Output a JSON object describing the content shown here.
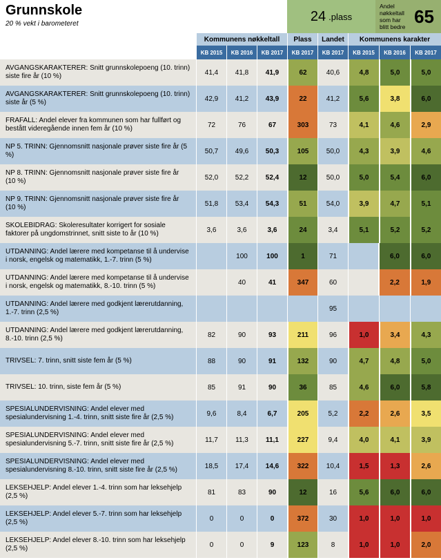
{
  "header": {
    "title": "Grunnskole",
    "subtitle": "20 % vekt i barometeret",
    "plass_num": "24",
    "plass_label": ".plass",
    "bedre_text": "Andel nøkkeltall som har blitt bedre",
    "bedre_num": "65"
  },
  "group_headers": {
    "nokkeltall": "Kommunens nøkkeltall",
    "plass": "Plass",
    "landet": "Landet",
    "karakter": "Kommunens karakter"
  },
  "col_headers": [
    "KB 2015",
    "KB 2016",
    "KB 2017",
    "KB 2017",
    "KB 2017",
    "KB 2015",
    "KB 2016",
    "KB 2017"
  ],
  "colors": {
    "dark_green": "#4d6b2f",
    "green": "#6d8c3d",
    "olive": "#97a84e",
    "yellow_green": "#c0c060",
    "yellow": "#f0e070",
    "orange": "#e8a850",
    "dark_orange": "#d87838",
    "red": "#c83030",
    "dark_red": "#a02020"
  },
  "rows": [
    {
      "label": "AVGANGSKARAKTERER: Snitt grunnskolepoeng (10. trinn) siste fire år (10 %)",
      "v": [
        "41,4",
        "41,8",
        "41,9",
        "62",
        "40,6",
        "4,8",
        "5,0",
        "5,0"
      ],
      "c": [
        null,
        null,
        null,
        "olive",
        null,
        "olive",
        "green",
        "green"
      ]
    },
    {
      "label": "AVGANGSKARAKTERER: Snitt grunnskolepoeng (10. trinn) siste år (5 %)",
      "v": [
        "42,9",
        "41,2",
        "43,9",
        "22",
        "41,2",
        "5,6",
        "3,8",
        "6,0"
      ],
      "c": [
        null,
        null,
        null,
        "dark_orange",
        null,
        "green",
        "yellow",
        "dark_green"
      ]
    },
    {
      "label": "FRAFALL: Andel elever fra kommunen som har fullført og bestått videregående innen fem år (10 %)",
      "v": [
        "72",
        "76",
        "67",
        "303",
        "73",
        "4,1",
        "4,6",
        "2,9"
      ],
      "c": [
        null,
        null,
        null,
        "dark_orange",
        null,
        "yellow_green",
        "olive",
        "orange"
      ]
    },
    {
      "label": "NP 5. TRINN: Gjennomsnitt nasjonale prøver siste fire år (5 %)",
      "v": [
        "50,7",
        "49,6",
        "50,3",
        "105",
        "50,0",
        "4,3",
        "3,9",
        "4,6"
      ],
      "c": [
        null,
        null,
        null,
        "olive",
        null,
        "olive",
        "yellow_green",
        "olive"
      ]
    },
    {
      "label": "NP 8. TRINN: Gjennomsnitt nasjonale prøver siste fire år (10 %)",
      "v": [
        "52,0",
        "52,2",
        "52,4",
        "12",
        "50,0",
        "5,0",
        "5,4",
        "6,0"
      ],
      "c": [
        null,
        null,
        null,
        "dark_green",
        null,
        "green",
        "green",
        "dark_green"
      ]
    },
    {
      "label": "NP 9. TRINN: Gjennomsnitt nasjonale prøver siste fire år (10 %)",
      "v": [
        "51,8",
        "53,4",
        "54,3",
        "51",
        "54,0",
        "3,9",
        "4,7",
        "5,1"
      ],
      "c": [
        null,
        null,
        null,
        "olive",
        null,
        "yellow_green",
        "olive",
        "green"
      ]
    },
    {
      "label": "SKOLEBIDRAG: Skoleresultater korrigert for sosiale faktorer på ungdomstrinnet, snitt siste to år (10 %)",
      "v": [
        "3,6",
        "3,6",
        "3,6",
        "24",
        "3,4",
        "5,1",
        "5,2",
        "5,2"
      ],
      "c": [
        null,
        null,
        null,
        "green",
        null,
        "green",
        "green",
        "green"
      ]
    },
    {
      "label": "UTDANNING: Andel lærere med kompetanse til å undervise i norsk, engelsk og matematikk, 1.-7. trinn (5 %)",
      "v": [
        "",
        "100",
        "100",
        "1",
        "71",
        "",
        "6,0",
        "6,0"
      ],
      "c": [
        null,
        null,
        null,
        "dark_green",
        null,
        null,
        "dark_green",
        "dark_green"
      ]
    },
    {
      "label": "UTDANNING: Andel lærere med kompetanse til å undervise i norsk, engelsk og matematikk, 8.-10. trinn (5 %)",
      "v": [
        "",
        "40",
        "41",
        "347",
        "60",
        "",
        "2,2",
        "1,9"
      ],
      "c": [
        null,
        null,
        null,
        "dark_orange",
        null,
        null,
        "dark_orange",
        "dark_orange"
      ]
    },
    {
      "label": "UTDANNING: Andel lærere med godkjent lærerutdanning, 1.-7. trinn (2,5 %)",
      "v": [
        "",
        "",
        "",
        "",
        "95",
        "",
        "",
        ""
      ],
      "c": [
        null,
        null,
        null,
        null,
        null,
        null,
        null,
        null
      ]
    },
    {
      "label": "UTDANNING: Andel lærere med godkjent lærerutdanning, 8.-10. trinn (2,5 %)",
      "v": [
        "82",
        "90",
        "93",
        "211",
        "96",
        "1,0",
        "3,4",
        "4,3"
      ],
      "c": [
        null,
        null,
        null,
        "yellow",
        null,
        "red",
        "orange",
        "olive"
      ]
    },
    {
      "label": "TRIVSEL: 7. trinn, snitt siste fem år (5 %)",
      "v": [
        "88",
        "90",
        "91",
        "132",
        "90",
        "4,7",
        "4,8",
        "5,0"
      ],
      "c": [
        null,
        null,
        null,
        "olive",
        null,
        "olive",
        "olive",
        "green"
      ]
    },
    {
      "label": "TRIVSEL: 10. trinn, siste fem år (5 %)",
      "v": [
        "85",
        "91",
        "90",
        "36",
        "85",
        "4,6",
        "6,0",
        "5,8"
      ],
      "c": [
        null,
        null,
        null,
        "green",
        null,
        "olive",
        "dark_green",
        "dark_green"
      ]
    },
    {
      "label": "SPESIALUNDERVISNING: Andel elever med spesialundervisning 1.-4. trinn, snitt siste fire år (2,5 %)",
      "v": [
        "9,6",
        "8,4",
        "6,7",
        "205",
        "5,2",
        "2,2",
        "2,6",
        "3,5"
      ],
      "c": [
        null,
        null,
        null,
        "yellow",
        null,
        "dark_orange",
        "orange",
        "yellow"
      ]
    },
    {
      "label": "SPESIALUNDERVISNING: Andel elever med spesialundervisning 5.-7. trinn, snitt siste fire år (2,5 %)",
      "v": [
        "11,7",
        "11,3",
        "11,1",
        "227",
        "9,4",
        "4,0",
        "4,1",
        "3,9"
      ],
      "c": [
        null,
        null,
        null,
        "yellow",
        null,
        "yellow_green",
        "yellow_green",
        "yellow_green"
      ]
    },
    {
      "label": "SPESIALUNDERVISNING: Andel elever med spesialundervisning 8.-10. trinn, snitt siste fire år (2,5 %)",
      "v": [
        "18,5",
        "17,4",
        "14,6",
        "322",
        "10,4",
        "1,5",
        "1,3",
        "2,6"
      ],
      "c": [
        null,
        null,
        null,
        "dark_orange",
        null,
        "red",
        "red",
        "orange"
      ]
    },
    {
      "label": "LEKSEHJELP: Andel elever 1.-4. trinn som har leksehjelp (2,5 %)",
      "v": [
        "81",
        "83",
        "90",
        "12",
        "16",
        "5,6",
        "6,0",
        "6,0"
      ],
      "c": [
        null,
        null,
        null,
        "dark_green",
        null,
        "green",
        "dark_green",
        "dark_green"
      ]
    },
    {
      "label": "LEKSEHJELP: Andel elever 5.-7. trinn som har leksehjelp (2,5 %)",
      "v": [
        "0",
        "0",
        "0",
        "372",
        "30",
        "1,0",
        "1,0",
        "1,0"
      ],
      "c": [
        null,
        null,
        null,
        "dark_orange",
        null,
        "red",
        "red",
        "red"
      ]
    },
    {
      "label": "LEKSEHJELP: Andel elever 8.-10. trinn som har leksehjelp (2,5 %)",
      "v": [
        "0",
        "0",
        "9",
        "123",
        "8",
        "1,0",
        "1,0",
        "2,0"
      ],
      "c": [
        null,
        null,
        null,
        "olive",
        null,
        "red",
        "red",
        "dark_orange"
      ]
    }
  ]
}
